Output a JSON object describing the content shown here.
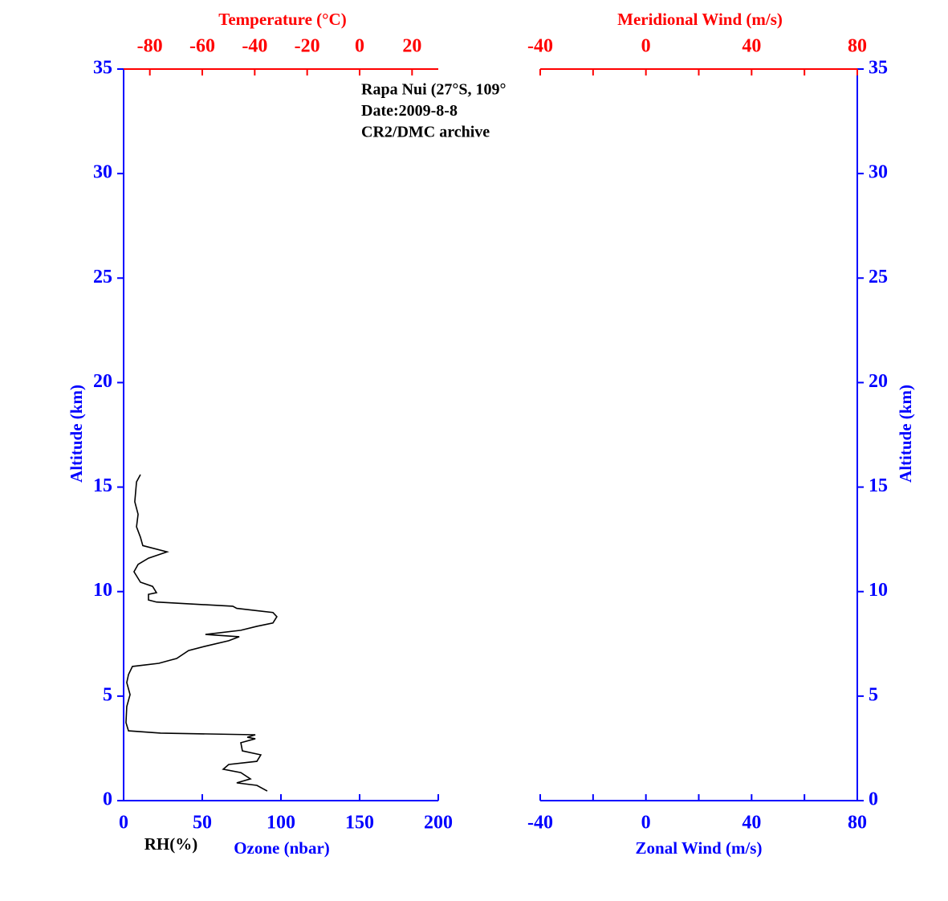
{
  "chart_data": [
    {
      "type": "line",
      "annotations": [
        "Rapa Nui (27°S, 109°",
        "Date:2009-8-8",
        "CR2/DMC archive"
      ],
      "xlabel": "Ozone (nbar)",
      "xlim": [
        0,
        200
      ],
      "xticks": [
        0,
        50,
        100,
        150,
        200
      ],
      "x2label": "Temperature (°C)",
      "x2lim": [
        -90,
        30
      ],
      "x2ticks": [
        -80,
        -60,
        -40,
        -20,
        0,
        20
      ],
      "ylabel": "Altitude (km)",
      "ylim": [
        0,
        35
      ],
      "yticks": [
        0,
        5,
        10,
        15,
        20,
        25,
        30,
        35
      ],
      "axis_color": "#0000ff",
      "x2_color": "#ff0000",
      "y_side": "left",
      "series": [
        {
          "name": "RH(%)",
          "color": "#000000",
          "x": [
            10.7,
            8.2,
            7.1,
            9.2,
            8.2,
            10.7,
            12.2,
            27.6,
            15.8,
            9.2,
            6.6,
            10.7,
            18.4,
            20.9,
            15.8,
            15.8,
            20.9,
            69.4,
            71.9,
            94.9,
            97.4,
            94.9,
            84.7,
            74.5,
            52.0,
            73.5,
            66.8,
            51.5,
            41.3,
            33.7,
            29.6,
            22.4,
            5.6,
            3.1,
            2.0,
            4.1,
            2.0,
            1.5,
            3.1,
            23.5,
            83.7,
            78.6,
            83.7,
            74.5,
            75.5,
            87.2,
            84.7,
            66.8,
            63.3,
            74.5,
            80.6,
            71.9,
            84.7,
            91.3
          ],
          "values": [
            15.6,
            15.25,
            14.3,
            13.7,
            13.1,
            12.6,
            12.2,
            11.9,
            11.6,
            11.3,
            10.95,
            10.45,
            10.25,
            9.95,
            9.87,
            9.6,
            9.5,
            9.3,
            9.2,
            9.0,
            8.8,
            8.5,
            8.34,
            8.15,
            7.95,
            7.84,
            7.65,
            7.38,
            7.18,
            6.8,
            6.72,
            6.57,
            6.42,
            6.03,
            5.65,
            5.07,
            4.5,
            3.73,
            3.34,
            3.23,
            3.15,
            3.03,
            2.96,
            2.77,
            2.38,
            2.19,
            1.88,
            1.73,
            1.5,
            1.34,
            1.04,
            0.85,
            0.73,
            0.46
          ]
        }
      ]
    },
    {
      "type": "line",
      "xlabel": "Zonal Wind (m/s)",
      "xlim": [
        -40,
        80
      ],
      "xticks": [
        -40,
        0,
        40,
        80
      ],
      "xticks_minor": [
        -20,
        20,
        60
      ],
      "x2label": "Meridional Wind (m/s)",
      "x2lim": [
        -40,
        80
      ],
      "x2ticks": [
        -40,
        0,
        40,
        80
      ],
      "x2ticks_minor": [
        -20,
        20,
        60
      ],
      "ylabel": "Altitude (km)",
      "ylim": [
        0,
        35
      ],
      "yticks": [
        0,
        5,
        10,
        15,
        20,
        25,
        30,
        35
      ],
      "axis_color": "#0000ff",
      "x2_color": "#ff0000",
      "y_side": "right",
      "series": []
    }
  ]
}
